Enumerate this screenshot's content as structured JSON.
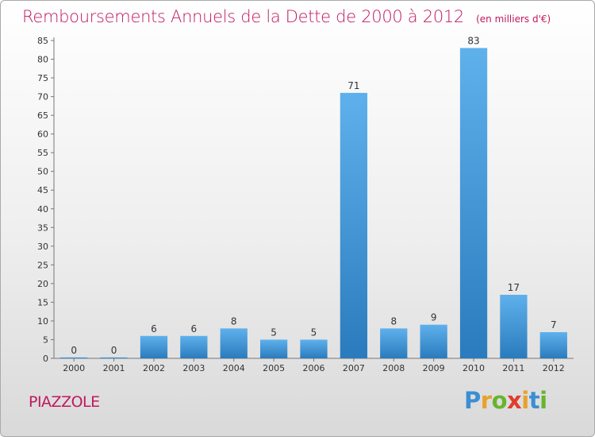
{
  "chart_data": {
    "type": "bar",
    "title": "Remboursements Annuels de la Dette de 2000 à 2012",
    "unit": "(en milliers d'€)",
    "categories": [
      "2000",
      "2001",
      "2002",
      "2003",
      "2004",
      "2005",
      "2006",
      "2007",
      "2008",
      "2009",
      "2010",
      "2011",
      "2012"
    ],
    "values": [
      0,
      0,
      6,
      6,
      8,
      5,
      5,
      71,
      8,
      9,
      83,
      17,
      7
    ],
    "ylim": [
      0,
      85
    ],
    "yticks": [
      0,
      5,
      10,
      15,
      20,
      25,
      30,
      35,
      40,
      45,
      50,
      55,
      60,
      65,
      70,
      75,
      80,
      85
    ],
    "grid": false,
    "bar_color": "#4a9fe0"
  },
  "commune": "PIAZZOLE",
  "logo": {
    "text": "Proxiti",
    "letters": [
      {
        "char": "P",
        "color": "#3a8ed4"
      },
      {
        "char": "r",
        "color": "#e8a12c"
      },
      {
        "char": "o",
        "color": "#68b42f"
      },
      {
        "char": "x",
        "color": "#e23b2e"
      },
      {
        "char": "i",
        "color": "#e8a12c"
      },
      {
        "char": "t",
        "color": "#3a8ed4"
      },
      {
        "char": "i",
        "color": "#68b42f"
      }
    ]
  }
}
